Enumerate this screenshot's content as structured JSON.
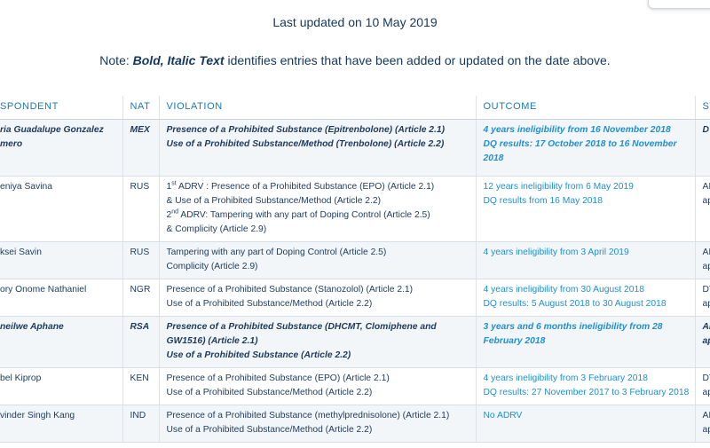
{
  "header": {
    "last_updated": "Last updated on 10 May 2019",
    "note_prefix": "Note: ",
    "note_emph": "Bold, Italic Text",
    "note_suffix": " identifies entries that have been added or updated on the date above."
  },
  "table": {
    "columns": [
      "SPONDENT",
      "NAT",
      "VIOLATION",
      "OUTCOME",
      "ST"
    ],
    "rows": [
      {
        "respondent": "ria Guadalupe Gonzalez\nmero",
        "nat": "MEX",
        "violation": [
          "Presence of a Prohibited Substance (Epitrenbolone) (Article 2.1)",
          "Use of a Prohibited Substance/Method (Trenbolone) (Article 2.2)"
        ],
        "outcome": [
          "4 years ineligibility from 16 November 2018",
          "DQ results: 17 October 2018 to 16 November 2018"
        ],
        "status": [
          "D"
        ]
      },
      {
        "respondent": "eniya Savina",
        "nat": "RUS",
        "violation": [
          "1st ADRV : Presence of a Prohibited Substance (EPO) (Article 2.1)",
          "& Use of a Prohibited Substance/Method (Article 2.2)",
          "2nd ADRV: Tampering with any part of Doping Control (Article 2.5)",
          "& Complicity (Article 2.9)"
        ],
        "outcome": [
          "12 years ineligibility from 6 May 2019",
          " DQ results from 16 May 2018"
        ],
        "status": [
          "AI",
          "ap"
        ]
      },
      {
        "respondent": "ksei Savin",
        "nat": "RUS",
        "violation": [
          "Tampering with any part of Doping Control (Article 2.5)",
          "Complicity (Article 2.9)"
        ],
        "outcome": [
          "4 years ineligibility from 3 April 2019"
        ],
        "status": [
          "AI",
          "ap"
        ]
      },
      {
        "respondent": "ory Onome Nathaniel",
        "nat": "NGR",
        "violation": [
          "Presence of a Prohibited Substance (Stanozolol) (Article 2.1)",
          "Use of a Prohibited Substance/Method (Article 2.2)"
        ],
        "outcome": [
          "4 years ineligibility from 30 August 2018",
          "DQ results: 5 August 2018 to 30 August 2018"
        ],
        "status": [
          "DT",
          "ap"
        ]
      },
      {
        "respondent": "neilwe Aphane",
        "nat": "RSA",
        "violation": [
          "Presence of a Prohibited Substance (DHCMT, Clomiphene and GW1516) (Article 2.1)",
          "Use of a Prohibited Substance (Article 2.2)"
        ],
        "outcome": [
          "3 years and 6 months ineligibility from 28 February 2018"
        ],
        "status": [
          "AI",
          "ap"
        ]
      },
      {
        "respondent": "bel Kiprop",
        "nat": "KEN",
        "violation": [
          "Presence of a Prohibited Substance (EPO) (Article 2.1)",
          "Use of a Prohibited Substance/Method (Article 2.2)"
        ],
        "outcome": [
          "4 years ineligibility from 3 February 2018",
          "DQ results: 27 November 2017 to 3 February 2018"
        ],
        "status": [
          "DT",
          "ap"
        ]
      },
      {
        "respondent": "vinder Singh Kang",
        "nat": "IND",
        "violation": [
          "Presence of a Prohibited Substance (methylprednisolone) (Article 2.1)",
          "Use of a Prohibited Substance/Method (Article 2.2)"
        ],
        "outcome": [
          "No ADRV"
        ],
        "status": [
          "AI",
          "ap"
        ]
      }
    ]
  }
}
